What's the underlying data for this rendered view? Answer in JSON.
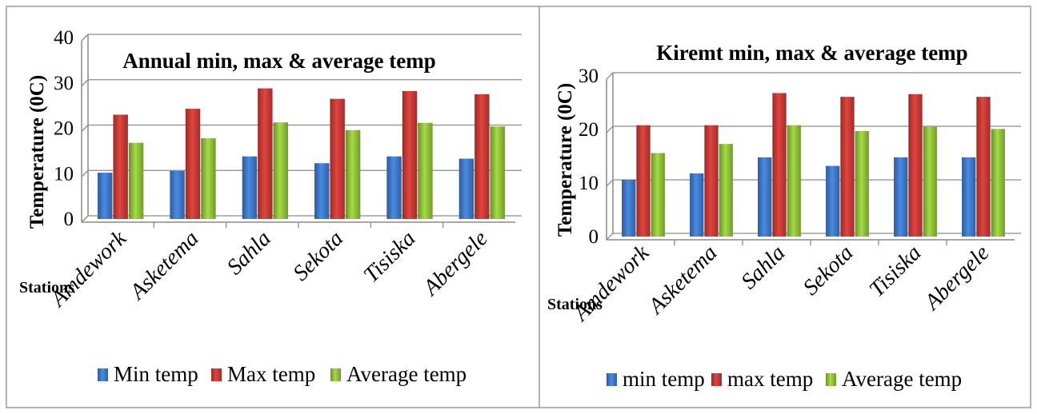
{
  "chart_data": [
    {
      "type": "bar",
      "title": "Annual min, max & average temp",
      "xlabel": "Stations",
      "ylabel": "Temperature (0C)",
      "ylim": [
        0,
        40
      ],
      "yticks": [
        0,
        10,
        20,
        30,
        40
      ],
      "grid": true,
      "legend_position": "bottom",
      "categories": [
        "Amdework",
        "Asketema",
        "Sahla",
        "Sekota",
        "Tisiska",
        "Abergele"
      ],
      "series": [
        {
          "name": "Min temp",
          "color": "#3f78c7",
          "values": [
            10.2,
            10.6,
            13.8,
            12.3,
            13.8,
            13.3
          ]
        },
        {
          "name": "Max temp",
          "color": "#c53a36",
          "values": [
            23.0,
            24.3,
            28.8,
            26.5,
            28.2,
            27.5
          ]
        },
        {
          "name": "Average temp",
          "color": "#8fbf3a",
          "values": [
            16.8,
            17.8,
            21.3,
            19.6,
            21.2,
            20.4
          ]
        }
      ]
    },
    {
      "type": "bar",
      "title": "Kiremt min, max & average temp",
      "xlabel": "Stations",
      "ylabel": "Temperature (0C)",
      "ylim": [
        0,
        30
      ],
      "yticks": [
        0,
        10,
        20,
        30
      ],
      "grid": true,
      "legend_position": "bottom",
      "categories": [
        "Amdework",
        "Asketema",
        "Sahla",
        "Sekota",
        "Tisiska",
        "Abergele"
      ],
      "series": [
        {
          "name": "min temp",
          "color": "#3f78c7",
          "values": [
            10.6,
            11.8,
            14.8,
            13.2,
            14.8,
            14.8
          ]
        },
        {
          "name": "max temp",
          "color": "#c53a36",
          "values": [
            20.8,
            20.8,
            26.8,
            26.1,
            26.6,
            26.1
          ]
        },
        {
          "name": "Average temp",
          "color": "#8fbf3a",
          "values": [
            15.6,
            17.3,
            20.8,
            19.7,
            20.5,
            20.1
          ]
        }
      ]
    }
  ]
}
